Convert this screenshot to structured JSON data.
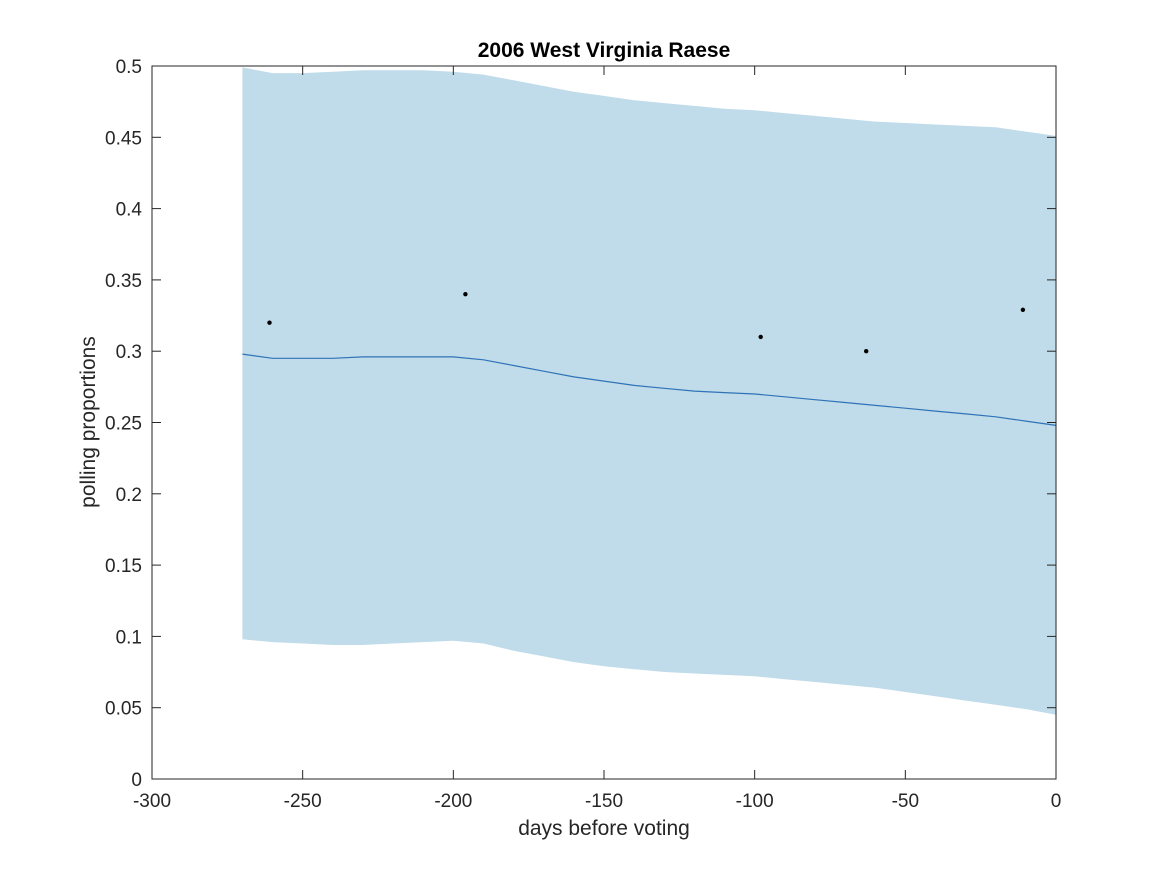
{
  "chart_data": {
    "type": "line",
    "title": "2006 West Virginia Raese",
    "xlabel": "days before voting",
    "ylabel": "polling proportions",
    "xlim": [
      -300,
      0
    ],
    "ylim": [
      0,
      0.5
    ],
    "xticks": [
      -300,
      -250,
      -200,
      -150,
      -100,
      -50,
      0
    ],
    "xtick_labels": [
      "-300",
      "-250",
      "-200",
      "-150",
      "-100",
      "-50",
      "0"
    ],
    "yticks": [
      0,
      0.05,
      0.1,
      0.15,
      0.2,
      0.25,
      0.3,
      0.35,
      0.4,
      0.45,
      0.5
    ],
    "ytick_labels": [
      "0",
      "0.05",
      "0.1",
      "0.15",
      "0.2",
      "0.25",
      "0.3",
      "0.35",
      "0.4",
      "0.45",
      "0.5"
    ],
    "grid": false,
    "colors": {
      "band": "#c0dcea",
      "line": "#2f73b7",
      "points": "#000000",
      "axes": "#262626"
    },
    "band": {
      "x": [
        -270,
        -260,
        -250,
        -240,
        -230,
        -220,
        -210,
        -200,
        -190,
        -180,
        -170,
        -160,
        -150,
        -140,
        -130,
        -120,
        -110,
        -100,
        -90,
        -80,
        -70,
        -60,
        -50,
        -40,
        -30,
        -20,
        -10,
        0
      ],
      "upper": [
        0.499,
        0.495,
        0.495,
        0.496,
        0.497,
        0.497,
        0.497,
        0.496,
        0.494,
        0.49,
        0.486,
        0.482,
        0.479,
        0.476,
        0.474,
        0.472,
        0.47,
        0.469,
        0.467,
        0.465,
        0.463,
        0.461,
        0.46,
        0.459,
        0.458,
        0.457,
        0.454,
        0.451
      ],
      "lower": [
        0.098,
        0.096,
        0.095,
        0.094,
        0.094,
        0.095,
        0.096,
        0.097,
        0.095,
        0.09,
        0.086,
        0.082,
        0.079,
        0.077,
        0.075,
        0.074,
        0.073,
        0.072,
        0.07,
        0.068,
        0.066,
        0.064,
        0.061,
        0.058,
        0.055,
        0.052,
        0.049,
        0.045
      ]
    },
    "series": [
      {
        "x": [
          -270,
          -260,
          -250,
          -240,
          -230,
          -220,
          -210,
          -200,
          -190,
          -180,
          -170,
          -160,
          -150,
          -140,
          -130,
          -120,
          -110,
          -100,
          -90,
          -80,
          -70,
          -60,
          -50,
          -40,
          -30,
          -20,
          -10,
          0
        ],
        "values": [
          0.298,
          0.295,
          0.295,
          0.295,
          0.296,
          0.296,
          0.296,
          0.296,
          0.294,
          0.29,
          0.286,
          0.282,
          0.279,
          0.276,
          0.274,
          0.272,
          0.271,
          0.27,
          0.268,
          0.266,
          0.264,
          0.262,
          0.26,
          0.258,
          0.256,
          0.254,
          0.251,
          0.248
        ]
      }
    ],
    "points": [
      {
        "x": -261,
        "y": 0.32
      },
      {
        "x": -196,
        "y": 0.34
      },
      {
        "x": -98,
        "y": 0.31
      },
      {
        "x": -63,
        "y": 0.3
      },
      {
        "x": -11,
        "y": 0.329
      }
    ]
  }
}
